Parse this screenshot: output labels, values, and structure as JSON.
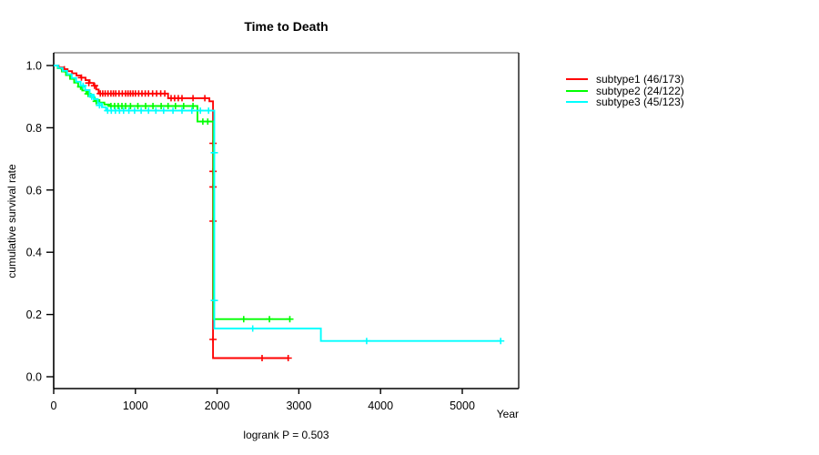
{
  "chart_data": {
    "type": "line",
    "variant": "kaplan-meier-step",
    "title": "Time to Death",
    "xlabel": "Year",
    "ylabel": "cumulative survival rate",
    "annotation": "logrank P = 0.503",
    "xlim": [
      0,
      5690
    ],
    "ylim": [
      0,
      1.05
    ],
    "x_ticks": [
      0,
      1000,
      2000,
      3000,
      4000,
      5000
    ],
    "x_tick_labels": [
      "0",
      "1000",
      "2000",
      "3000",
      "4000",
      "5000"
    ],
    "y_ticks": [
      0.0,
      0.2,
      0.4,
      0.6,
      0.8,
      1.0
    ],
    "y_tick_labels": [
      "0.0",
      "0.2",
      "0.4",
      "0.6",
      "0.8",
      "1.0"
    ],
    "grid": false,
    "legend_position": "right-outside",
    "series": [
      {
        "name": "subtype1",
        "label": "subtype1 (46/173)",
        "events": 46,
        "n": 173,
        "color": "#ff0000",
        "points": [
          [
            0,
            1.0
          ],
          [
            60,
            0.994
          ],
          [
            115,
            0.988
          ],
          [
            170,
            0.982
          ],
          [
            225,
            0.975
          ],
          [
            280,
            0.968
          ],
          [
            335,
            0.961
          ],
          [
            390,
            0.953
          ],
          [
            440,
            0.944
          ],
          [
            490,
            0.935
          ],
          [
            520,
            0.923
          ],
          [
            550,
            0.91
          ],
          [
            1400,
            0.895
          ],
          [
            1905,
            0.885
          ],
          [
            1950,
            0.06
          ],
          [
            2880,
            0.06
          ]
        ],
        "censors": [
          [
            130,
            0.988
          ],
          [
            340,
            0.961
          ],
          [
            430,
            0.944
          ],
          [
            500,
            0.935
          ],
          [
            570,
            0.91
          ],
          [
            600,
            0.91
          ],
          [
            630,
            0.91
          ],
          [
            665,
            0.91
          ],
          [
            700,
            0.91
          ],
          [
            730,
            0.91
          ],
          [
            760,
            0.91
          ],
          [
            800,
            0.91
          ],
          [
            840,
            0.91
          ],
          [
            880,
            0.91
          ],
          [
            910,
            0.91
          ],
          [
            940,
            0.91
          ],
          [
            970,
            0.91
          ],
          [
            1000,
            0.91
          ],
          [
            1040,
            0.91
          ],
          [
            1080,
            0.91
          ],
          [
            1120,
            0.91
          ],
          [
            1160,
            0.91
          ],
          [
            1210,
            0.91
          ],
          [
            1260,
            0.91
          ],
          [
            1310,
            0.91
          ],
          [
            1360,
            0.91
          ],
          [
            1437,
            0.895
          ],
          [
            1480,
            0.895
          ],
          [
            1525,
            0.895
          ],
          [
            1570,
            0.895
          ],
          [
            1705,
            0.895
          ],
          [
            1850,
            0.895
          ],
          [
            1950,
            0.75
          ],
          [
            1950,
            0.66
          ],
          [
            1950,
            0.61
          ],
          [
            1950,
            0.5
          ],
          [
            1950,
            0.12
          ],
          [
            2550,
            0.06
          ],
          [
            2870,
            0.06
          ]
        ]
      },
      {
        "name": "subtype2",
        "label": "subtype2 (24/122)",
        "events": 24,
        "n": 122,
        "color": "#00ff00",
        "points": [
          [
            0,
            1.0
          ],
          [
            50,
            0.991
          ],
          [
            100,
            0.981
          ],
          [
            150,
            0.969
          ],
          [
            200,
            0.957
          ],
          [
            250,
            0.945
          ],
          [
            300,
            0.932
          ],
          [
            350,
            0.92
          ],
          [
            400,
            0.909
          ],
          [
            450,
            0.899
          ],
          [
            500,
            0.889
          ],
          [
            560,
            0.881
          ],
          [
            620,
            0.875
          ],
          [
            680,
            0.87
          ],
          [
            1760,
            0.82
          ],
          [
            1955,
            0.185
          ],
          [
            2890,
            0.185
          ]
        ],
        "censors": [
          [
            330,
            0.932
          ],
          [
            420,
            0.909
          ],
          [
            520,
            0.885
          ],
          [
            700,
            0.87
          ],
          [
            745,
            0.87
          ],
          [
            790,
            0.87
          ],
          [
            835,
            0.87
          ],
          [
            880,
            0.87
          ],
          [
            940,
            0.87
          ],
          [
            1030,
            0.87
          ],
          [
            1125,
            0.87
          ],
          [
            1215,
            0.87
          ],
          [
            1315,
            0.87
          ],
          [
            1400,
            0.87
          ],
          [
            1490,
            0.87
          ],
          [
            1590,
            0.87
          ],
          [
            1705,
            0.87
          ],
          [
            1825,
            0.82
          ],
          [
            1885,
            0.82
          ],
          [
            2325,
            0.185
          ],
          [
            2640,
            0.185
          ],
          [
            2890,
            0.185
          ]
        ]
      },
      {
        "name": "subtype3",
        "label": "subtype3 (45/123)",
        "events": 45,
        "n": 123,
        "color": "#00ffff",
        "points": [
          [
            0,
            1.0
          ],
          [
            55,
            0.992
          ],
          [
            110,
            0.983
          ],
          [
            165,
            0.972
          ],
          [
            220,
            0.96
          ],
          [
            275,
            0.948
          ],
          [
            330,
            0.935
          ],
          [
            385,
            0.921
          ],
          [
            440,
            0.906
          ],
          [
            490,
            0.892
          ],
          [
            540,
            0.878
          ],
          [
            590,
            0.866
          ],
          [
            640,
            0.855
          ],
          [
            1965,
            0.155
          ],
          [
            3270,
            0.115
          ],
          [
            5470,
            0.115
          ]
        ],
        "censors": [
          [
            360,
            0.935
          ],
          [
            465,
            0.9
          ],
          [
            560,
            0.872
          ],
          [
            660,
            0.855
          ],
          [
            705,
            0.855
          ],
          [
            755,
            0.855
          ],
          [
            805,
            0.855
          ],
          [
            855,
            0.855
          ],
          [
            920,
            0.855
          ],
          [
            990,
            0.855
          ],
          [
            1070,
            0.855
          ],
          [
            1160,
            0.855
          ],
          [
            1250,
            0.855
          ],
          [
            1345,
            0.855
          ],
          [
            1460,
            0.855
          ],
          [
            1570,
            0.855
          ],
          [
            1690,
            0.855
          ],
          [
            1795,
            0.855
          ],
          [
            1895,
            0.855
          ],
          [
            1965,
            0.72
          ],
          [
            1965,
            0.245
          ],
          [
            2435,
            0.155
          ],
          [
            3830,
            0.115
          ],
          [
            5470,
            0.115
          ]
        ]
      }
    ]
  }
}
